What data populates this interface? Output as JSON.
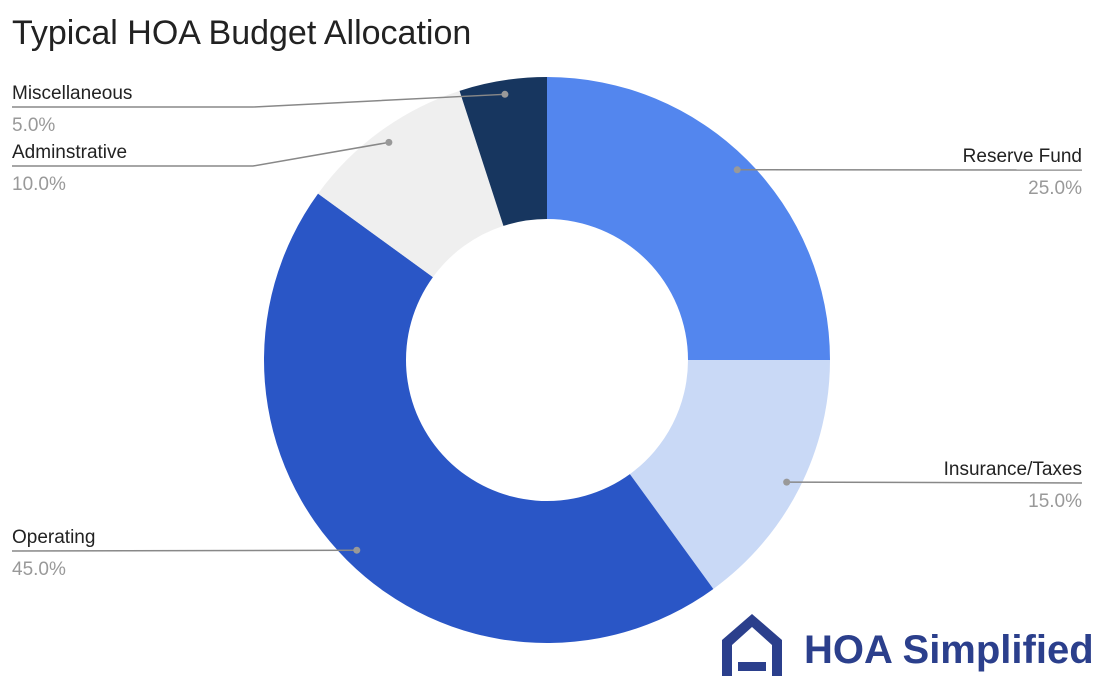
{
  "chart_data": {
    "type": "donut",
    "title": "Typical HOA Budget Allocation",
    "categories": [
      "Reserve Fund",
      "Insurance/Taxes",
      "Operating",
      "Adminstrative",
      "Miscellaneous"
    ],
    "values": [
      25,
      15,
      45,
      10,
      5
    ],
    "value_labels": [
      "25.0%",
      "15.0%",
      "45.0%",
      "10.0%",
      "5.0%"
    ],
    "colors": [
      "#5386ee",
      "#c9d9f6",
      "#2a56c6",
      "#efefef",
      "#17365f"
    ]
  },
  "logo": {
    "text": "HOA Simplified"
  }
}
